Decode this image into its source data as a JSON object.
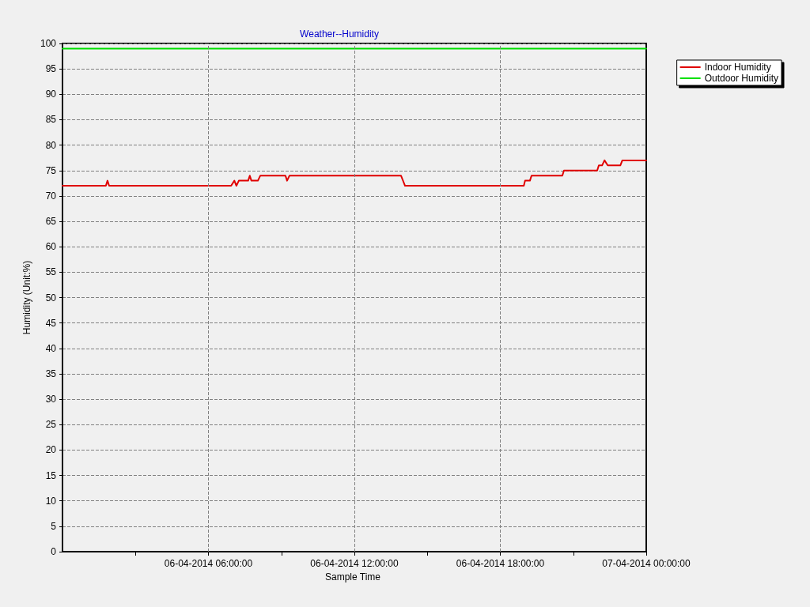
{
  "chart_data": {
    "type": "line",
    "title": "Weather--Humidity",
    "xlabel": "Sample Time",
    "ylabel": "Humidity (Unit:%)",
    "xlim": [
      "2014-04-06T00:00",
      "2014-04-07T00:00"
    ],
    "xticks": [
      {
        "value": "2014-04-06T03:00",
        "label": null
      },
      {
        "value": "2014-04-06T06:00",
        "label": "06-04-2014 06:00:00"
      },
      {
        "value": "2014-04-06T09:00",
        "label": null
      },
      {
        "value": "2014-04-06T12:00",
        "label": "06-04-2014 12:00:00"
      },
      {
        "value": "2014-04-06T15:00",
        "label": null
      },
      {
        "value": "2014-04-06T18:00",
        "label": "06-04-2014 18:00:00"
      },
      {
        "value": "2014-04-06T21:00",
        "label": null
      },
      {
        "value": "2014-04-07T00:00",
        "label": "07-04-2014 00:00:00"
      }
    ],
    "ylim": [
      0,
      100
    ],
    "yticks": [
      0,
      5,
      10,
      15,
      20,
      25,
      30,
      35,
      40,
      45,
      50,
      55,
      60,
      65,
      70,
      75,
      80,
      85,
      90,
      95,
      100
    ],
    "series": [
      {
        "name": "Indoor Humidity",
        "color": "#e00000",
        "x": [
          "2014-04-06T00:00",
          "2014-04-06T01:47",
          "2014-04-06T01:51",
          "2014-04-06T01:55",
          "2014-04-06T06:56",
          "2014-04-06T07:04",
          "2014-04-06T07:09",
          "2014-04-06T07:15",
          "2014-04-06T07:38",
          "2014-04-06T07:42",
          "2014-04-06T07:46",
          "2014-04-06T08:02",
          "2014-04-06T08:08",
          "2014-04-06T09:10",
          "2014-04-06T09:14",
          "2014-04-06T09:20",
          "2014-04-06T13:55",
          "2014-04-06T14:05",
          "2014-04-06T18:58",
          "2014-04-06T19:01",
          "2014-04-06T19:13",
          "2014-04-06T19:17",
          "2014-04-06T20:33",
          "2014-04-06T20:37",
          "2014-04-06T21:59",
          "2014-04-06T22:03",
          "2014-04-06T22:11",
          "2014-04-06T22:17",
          "2014-04-06T22:25",
          "2014-04-06T22:56",
          "2014-04-06T23:01",
          "2014-04-07T00:00"
        ],
        "values": [
          72,
          72,
          73,
          72,
          72,
          73,
          72,
          73,
          73,
          74,
          73,
          73,
          74,
          74,
          73,
          74,
          74,
          72,
          72,
          73,
          73,
          74,
          74,
          75,
          75,
          76,
          76,
          77,
          76,
          76,
          77,
          77
        ]
      },
      {
        "name": "Outdoor Humidity",
        "color": "#00e000",
        "x": [
          "2014-04-06T00:00",
          "2014-04-07T00:00"
        ],
        "values": [
          99,
          99
        ]
      }
    ],
    "grid": true,
    "legend": "top right",
    "marker": "none"
  }
}
